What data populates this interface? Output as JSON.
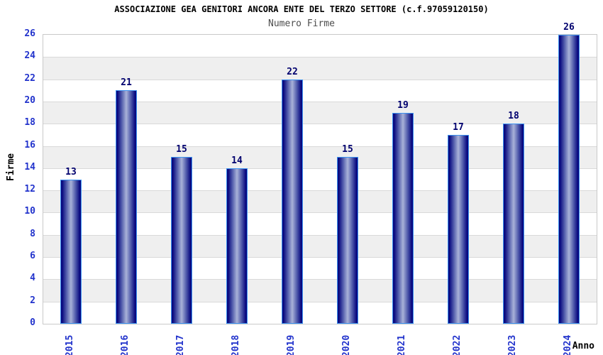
{
  "chart_data": {
    "type": "bar",
    "title": "ASSOCIAZIONE GEA GENITORI ANCORA ENTE DEL TERZO SETTORE (c.f.97059120150)",
    "subtitle": "Numero Firme",
    "categories": [
      "2015",
      "2016",
      "2017",
      "2018",
      "2019",
      "2020",
      "2021",
      "2022",
      "2023",
      "2024"
    ],
    "values": [
      13,
      21,
      15,
      14,
      22,
      15,
      19,
      17,
      18,
      26
    ],
    "xlabel": "Anno",
    "ylabel": "Firme",
    "ylim": [
      0,
      26
    ],
    "ytick_step": 2,
    "yticks": [
      0,
      2,
      4,
      6,
      8,
      10,
      12,
      14,
      16,
      18,
      20,
      22,
      24,
      26
    ],
    "grid": "horizontal gridlines every 2 units with alternating white/gray bands",
    "legend": "none",
    "bar_value_labels_shown": true
  },
  "colors": {
    "tick_label": "#2233cc",
    "value_label": "#00006e",
    "bar_border": "#3c92f0",
    "bar_edge_dark": "#0a0a80",
    "bar_mid": "#5560ae",
    "bar_center_light": "#a9b2d8",
    "band_gray": "#efefef",
    "band_white": "#ffffff",
    "gridline": "#d9d9d9",
    "plot_border": "#c9c9c9",
    "title_color": "#000000",
    "subtitle_color": "#4d4d4d",
    "axis_label_color": "#000000"
  }
}
